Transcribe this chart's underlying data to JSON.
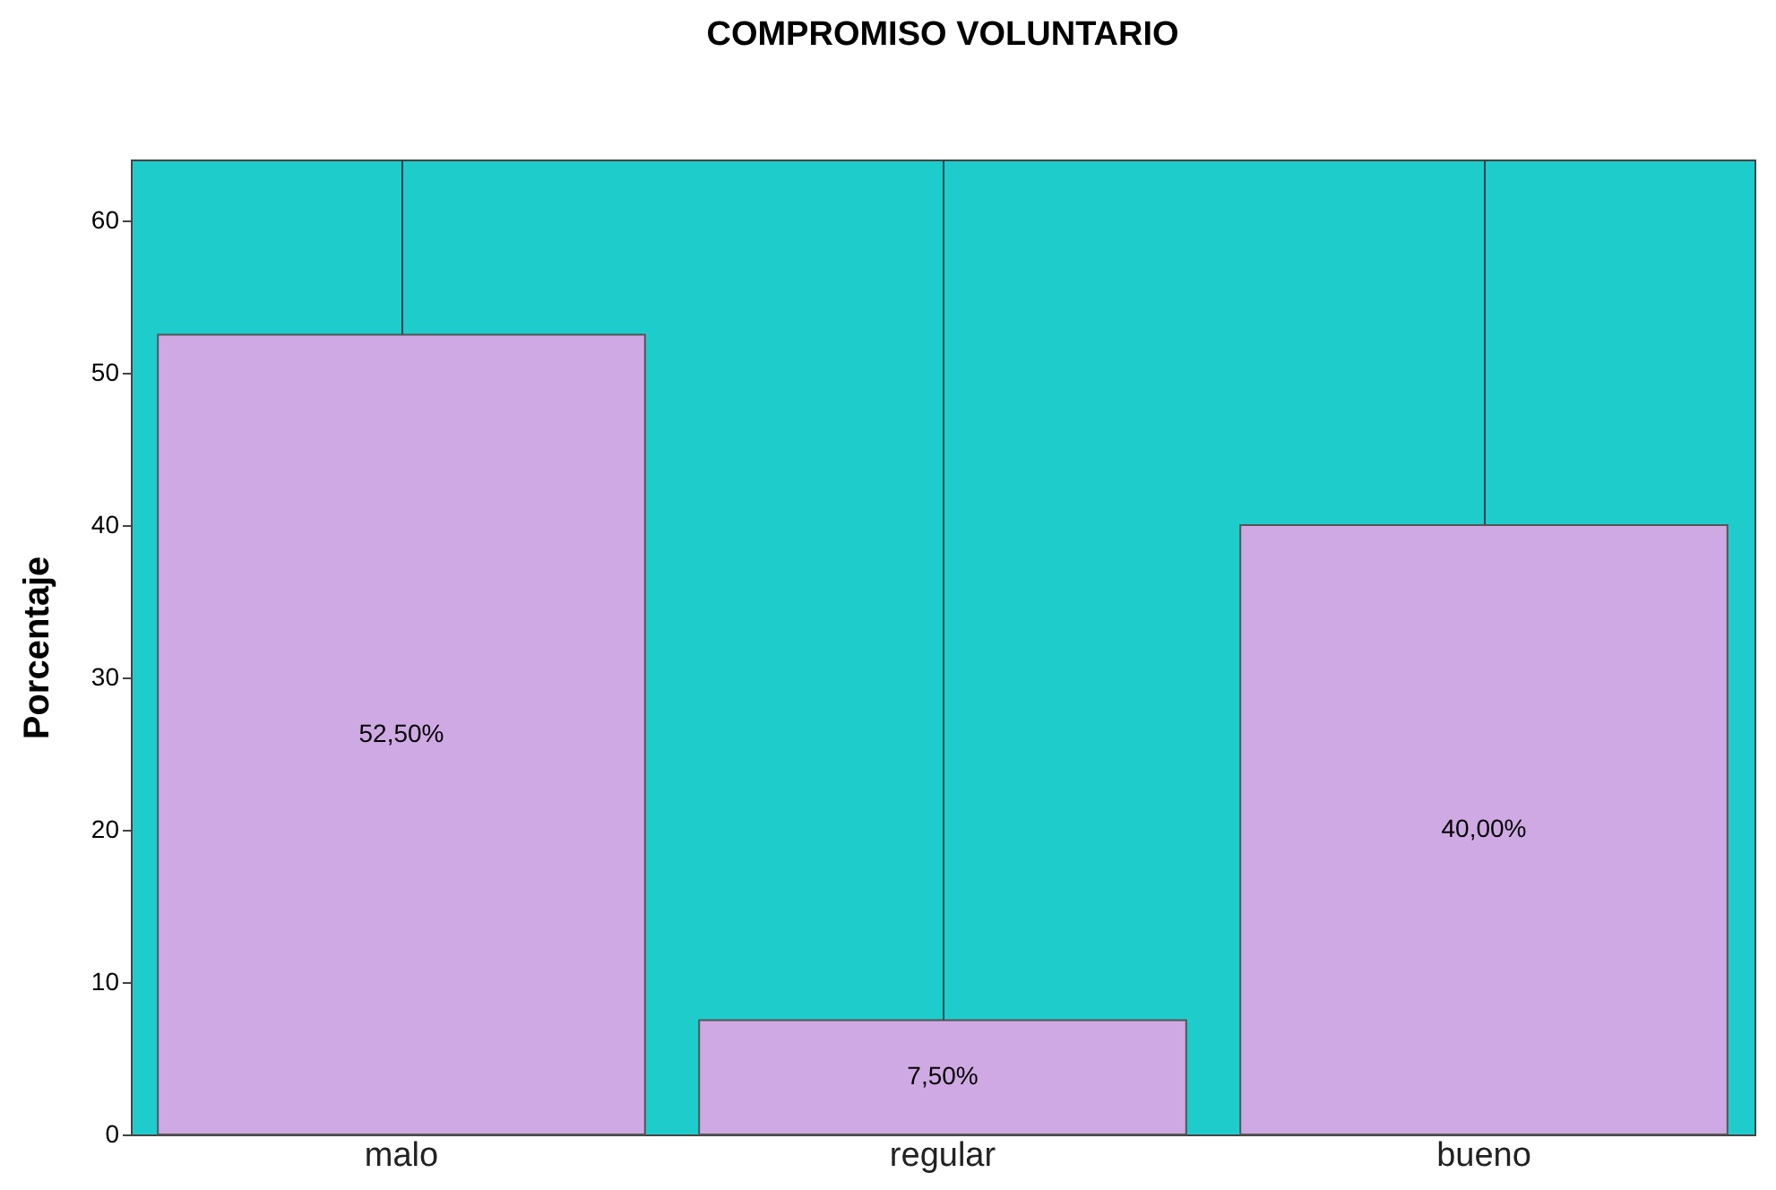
{
  "chart_data": {
    "type": "bar",
    "title": "COMPROMISO VOLUNTARIO",
    "ylabel": "Porcentaje",
    "categories": [
      "malo",
      "regular",
      "bueno"
    ],
    "values": [
      52.5,
      7.5,
      40
    ],
    "value_labels": [
      "52,50%",
      "7,50%",
      "40,00%"
    ],
    "color": "#cfa9e3",
    "ylim": [
      0,
      64
    ],
    "yticks": [
      0,
      10,
      20,
      30,
      40,
      50,
      60
    ],
    "grid": "x"
  }
}
